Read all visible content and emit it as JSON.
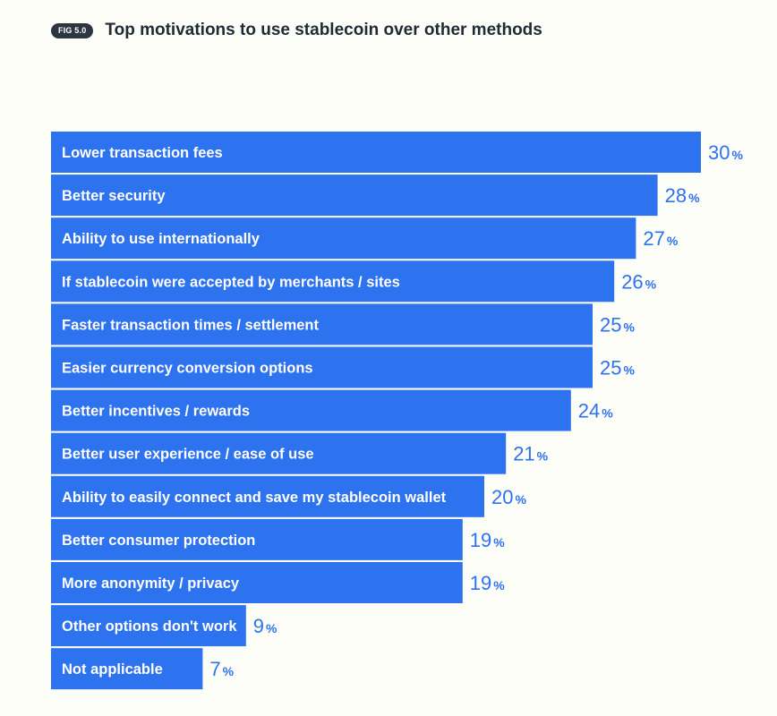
{
  "header": {
    "badge": "FIG 5.0",
    "title": "Top motivations to use stablecoin over other methods"
  },
  "colors": {
    "bar": "#2d72ee",
    "badge_bg": "#2c3540",
    "title": "#1f2a35",
    "background": "#fdfdf8"
  },
  "chart_data": {
    "type": "bar",
    "orientation": "horizontal",
    "title": "Top motivations to use stablecoin over other methods",
    "value_suffix": "%",
    "categories": [
      "Lower transaction fees",
      "Better security",
      "Ability to use internationally",
      "If stablecoin were accepted by merchants / sites",
      "Faster transaction times / settlement",
      "Easier currency conversion options",
      "Better incentives / rewards",
      "Better user experience / ease of use",
      "Ability to easily connect and save my stablecoin wallet",
      "Better consumer protection",
      "More anonymity / privacy",
      "Other options don't work",
      "Not applicable"
    ],
    "values": [
      30,
      28,
      27,
      26,
      25,
      25,
      24,
      21,
      20,
      19,
      19,
      9,
      7
    ],
    "data_labels": [
      "30",
      "28",
      "27",
      "26",
      "25",
      "25",
      "24",
      "21",
      "20",
      "19",
      "19",
      "9",
      "7"
    ],
    "grid": false,
    "legend": "none"
  }
}
